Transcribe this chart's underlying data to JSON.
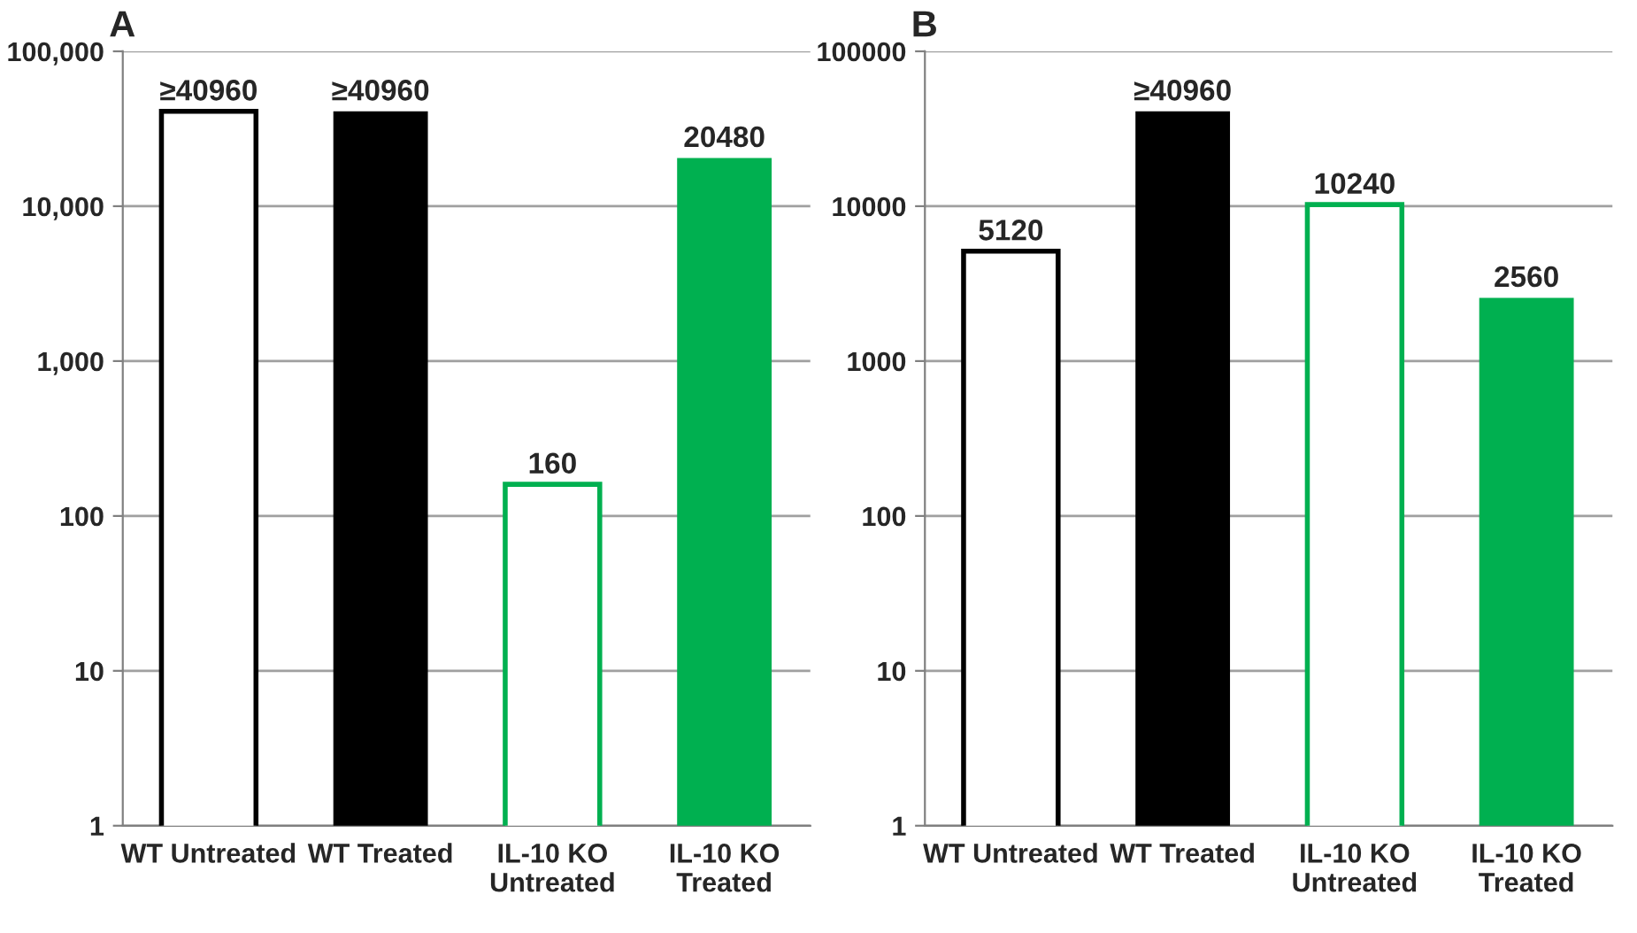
{
  "chart_data": [
    {
      "type": "bar",
      "title": "A",
      "categories": [
        "WT Untreated",
        "WT Treated",
        "IL-10 KO\nUntreated",
        "IL-10 KO\nTreated"
      ],
      "series": [
        {
          "values": [
            40960,
            null,
            160,
            null
          ],
          "value_labels": [
            "≥40960",
            null,
            "160",
            null
          ],
          "colors": [
            "#000000",
            null,
            "#00b050",
            null
          ]
        },
        {
          "values": [
            null,
            40960,
            null,
            20480
          ],
          "value_labels": [
            null,
            "≥40960",
            null,
            "20480"
          ],
          "colors": [
            null,
            "#000000",
            null,
            "#00b050"
          ]
        }
      ],
      "log": true,
      "ylim": [
        1,
        100000
      ],
      "yticks": [
        1,
        10,
        {
          "value": 100,
          "label": "100"
        },
        {
          "value": 1000,
          "label": "1,000"
        },
        {
          "value": 10000,
          "label": "10,000"
        },
        {
          "value": 100000,
          "label": "100,000"
        }
      ],
      "grid": "y"
    },
    {
      "type": "bar",
      "title": "B",
      "categories": [
        "WT Untreated",
        "WT Treated",
        "IL-10 KO\nUntreated",
        "IL-10 KO\nTreated"
      ],
      "series": [
        {
          "values": [
            5120,
            null,
            10240,
            null
          ],
          "value_labels": [
            "5120",
            null,
            "10240",
            null
          ],
          "colors": [
            "#000000",
            null,
            "#00b050",
            null
          ]
        },
        {
          "values": [
            null,
            40960,
            null,
            2560
          ],
          "value_labels": [
            null,
            "≥40960",
            null,
            "2560"
          ],
          "colors": [
            null,
            "#000000",
            null,
            "#00b050"
          ]
        }
      ],
      "log": true,
      "ylim": [
        1,
        100000
      ],
      "yticks": [
        1,
        10,
        100,
        1000,
        10000,
        100000
      ],
      "grid": "y"
    }
  ]
}
